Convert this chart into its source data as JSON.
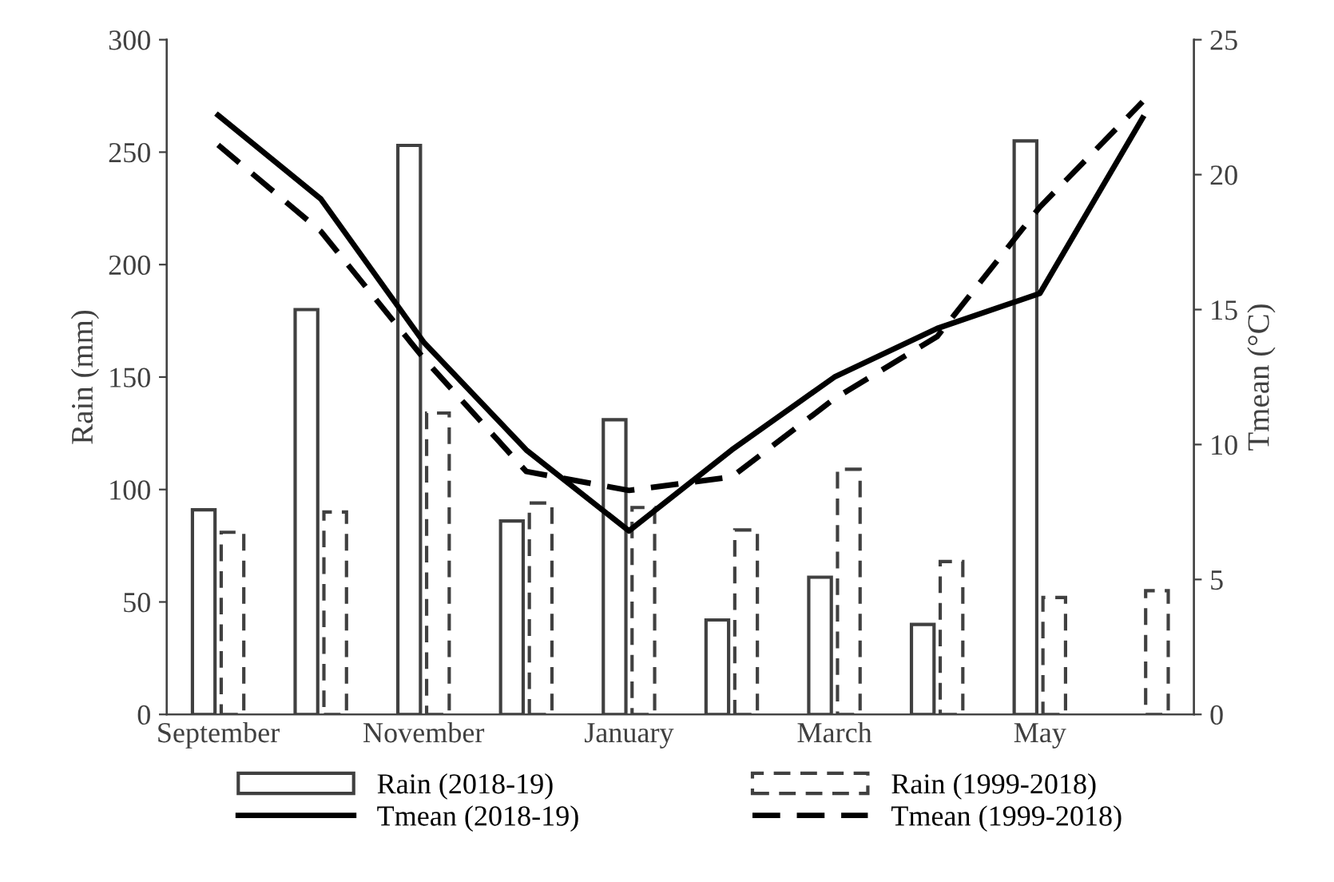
{
  "chart_data": {
    "type": "bar",
    "ylabel": "Rain (mm)",
    "y2label": "Tmean (°C)",
    "categories": [
      "September",
      null,
      "November",
      null,
      "January",
      null,
      "March",
      null,
      "May",
      null
    ],
    "ylim": [
      0,
      300
    ],
    "yticks": [
      0,
      50,
      100,
      150,
      200,
      250,
      300
    ],
    "y2lim": [
      0,
      25
    ],
    "y2ticks": [
      0,
      5,
      10,
      15,
      20,
      25
    ],
    "grid": false,
    "legend": "bottom",
    "series": [
      {
        "name": "Rain (2018-19)",
        "color": "#404040",
        "line_style": "solid",
        "values": [
          91,
          180,
          253,
          86,
          131,
          42,
          61,
          40,
          255,
          null
        ]
      },
      {
        "name": "Rain (1999-2018)",
        "color": "#404040",
        "line_style": "dashed",
        "values": [
          81,
          90,
          134,
          94,
          92,
          82,
          109,
          68,
          52,
          55
        ]
      },
      {
        "name": "Tmean (2018-19)",
        "type": "line",
        "axis": "y2",
        "color": "#000000",
        "line_style": "solid",
        "values": [
          22.2,
          19.1,
          13.8,
          9.8,
          6.8,
          9.8,
          12.5,
          14.3,
          15.6,
          22.1
        ]
      },
      {
        "name": "Tmean (1999-2018)",
        "type": "line",
        "axis": "y2",
        "color": "#000000",
        "line_style": "dashed",
        "values": [
          21.1,
          17.9,
          13.2,
          9.0,
          8.3,
          8.8,
          11.7,
          14.0,
          18.8,
          22.7
        ]
      }
    ]
  }
}
